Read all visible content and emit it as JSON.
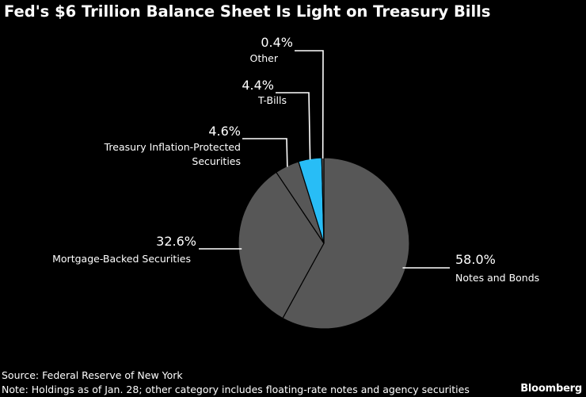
{
  "title": "Fed's $6 Trillion Balance Sheet Is Light on Treasury Bills",
  "footer": {
    "source": "Source: Federal Reserve of New York",
    "note": "Note: Holdings as of Jan. 28; other category includes floating-rate notes and agency securities",
    "brand": "Bloomberg"
  },
  "colors": {
    "background": "#000000",
    "slice_default": "#575757",
    "slice_highlight": "#28bdf6",
    "slice_border": "#000000",
    "leader": "#ffffff"
  },
  "chart_data": {
    "type": "pie",
    "title": "Fed's $6 Trillion Balance Sheet Is Light on Treasury Bills",
    "slices": [
      {
        "name": "Notes and Bonds",
        "value": 58.0,
        "label": "58.0%",
        "caption": [
          "Notes and Bonds"
        ],
        "highlight": false
      },
      {
        "name": "Mortgage-Backed Securities",
        "value": 32.6,
        "label": "32.6%",
        "caption": [
          "Mortgage-Backed Securities"
        ],
        "highlight": false
      },
      {
        "name": "Treasury Inflation-Protected Securities",
        "value": 4.6,
        "label": "4.6%",
        "caption": [
          "Treasury Inflation-Protected",
          "Securities"
        ],
        "highlight": false
      },
      {
        "name": "T-Bills",
        "value": 4.4,
        "label": "4.4%",
        "caption": [
          "T-Bills"
        ],
        "highlight": true
      },
      {
        "name": "Other",
        "value": 0.4,
        "label": "0.4%",
        "caption": [
          "Other"
        ],
        "highlight": false
      }
    ]
  }
}
